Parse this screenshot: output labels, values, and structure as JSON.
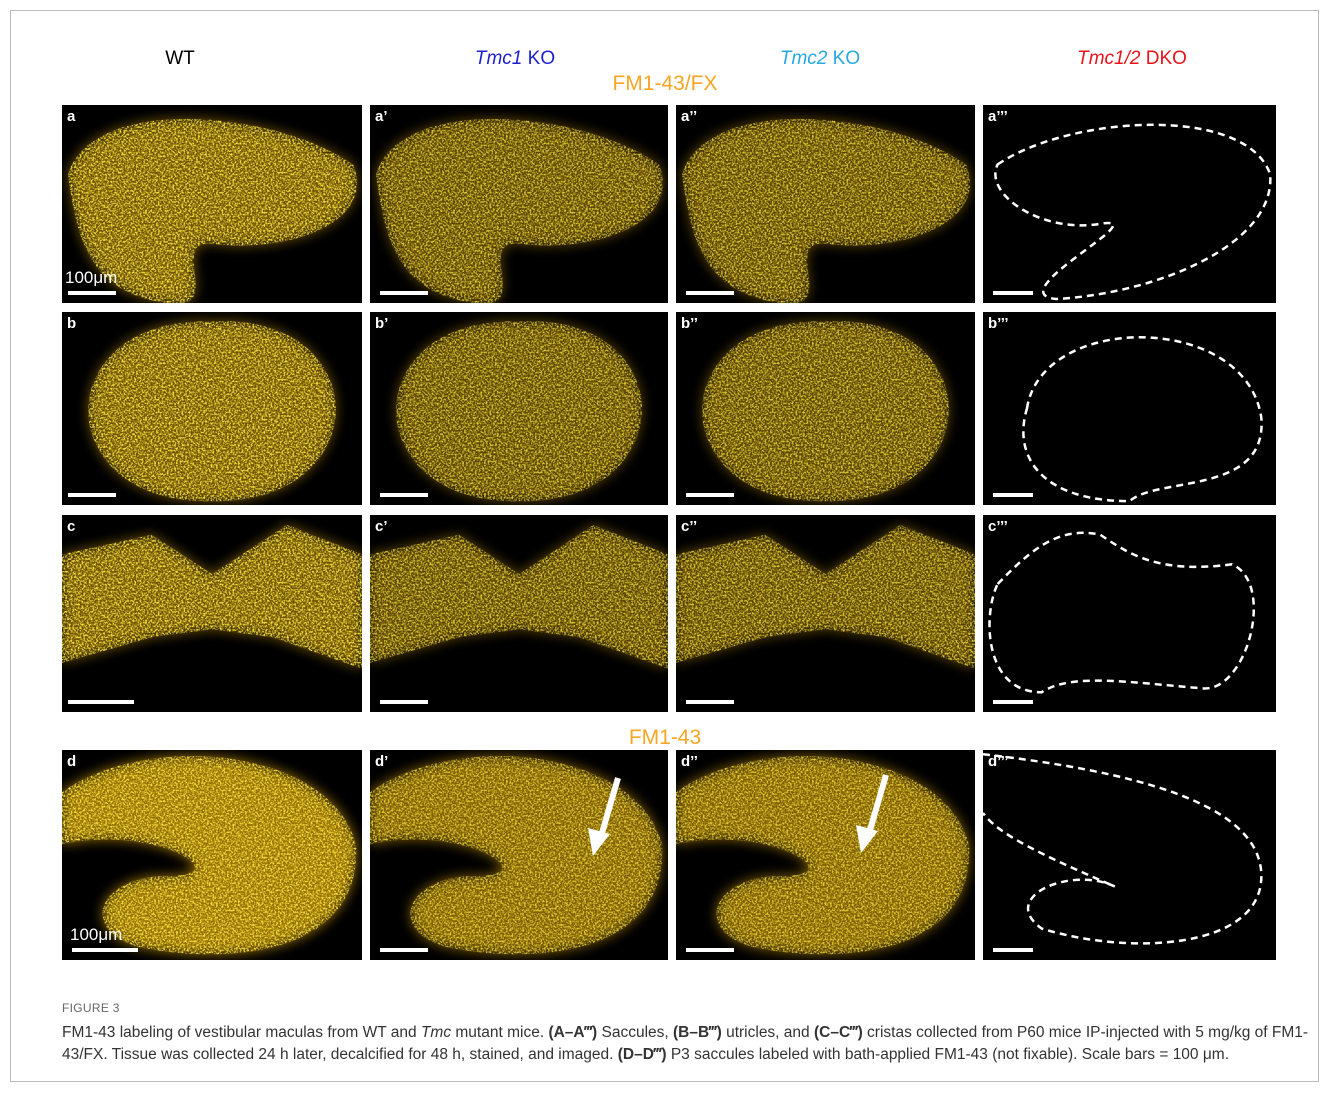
{
  "figure": {
    "columns": [
      {
        "parts": [
          {
            "text": "WT"
          }
        ],
        "color": "#000000"
      },
      {
        "parts": [
          {
            "text": "Tmc1",
            "style": "italic"
          },
          {
            "text": " KO"
          }
        ],
        "color": "#1f1fd0"
      },
      {
        "parts": [
          {
            "text": "Tmc2",
            "style": "italic"
          },
          {
            "text": " KO"
          }
        ],
        "color": "#27a9e1"
      },
      {
        "parts": [
          {
            "text": "Tmc1/2",
            "style": "italic"
          },
          {
            "text": " DKO"
          }
        ],
        "color": "#e8141b"
      }
    ],
    "sections": [
      "FM1-43/FX",
      "FM1-43"
    ],
    "rows": [
      {
        "labels": [
          "a",
          "a’",
          "a’’",
          "a’’’"
        ],
        "scale_text": "100μm"
      },
      {
        "labels": [
          "b",
          "b’",
          "b’’",
          "b’’’"
        ]
      },
      {
        "labels": [
          "c",
          "c’",
          "c’’",
          "c’’’"
        ]
      },
      {
        "labels": [
          "d",
          "d’",
          "d’’",
          "d’’’"
        ],
        "scale_text": "100μm"
      }
    ]
  },
  "caption": {
    "label": "FIGURE 3",
    "runs": [
      {
        "text": "FM1-43 labeling of vestibular maculas from WT and "
      },
      {
        "text": "Tmc",
        "style": "italic"
      },
      {
        "text": " mutant mice. "
      },
      {
        "text": "(A–A‴)",
        "style": "bold"
      },
      {
        "text": " Saccules, "
      },
      {
        "text": "(B–B‴)",
        "style": "bold"
      },
      {
        "text": " utricles, and "
      },
      {
        "text": "(C–C‴)",
        "style": "bold"
      },
      {
        "text": " cristas collected from P60 mice IP-injected with 5 mg/kg of FM1-43/FX. Tissue was collected 24 h later, decalcified for 48 h, stained, and imaged. "
      },
      {
        "text": "(D–D‴)",
        "style": "bold"
      },
      {
        "text": " P3 saccules labeled with bath-applied FM1-43 (not fixable). Scale bars = 100 μm."
      }
    ]
  }
}
